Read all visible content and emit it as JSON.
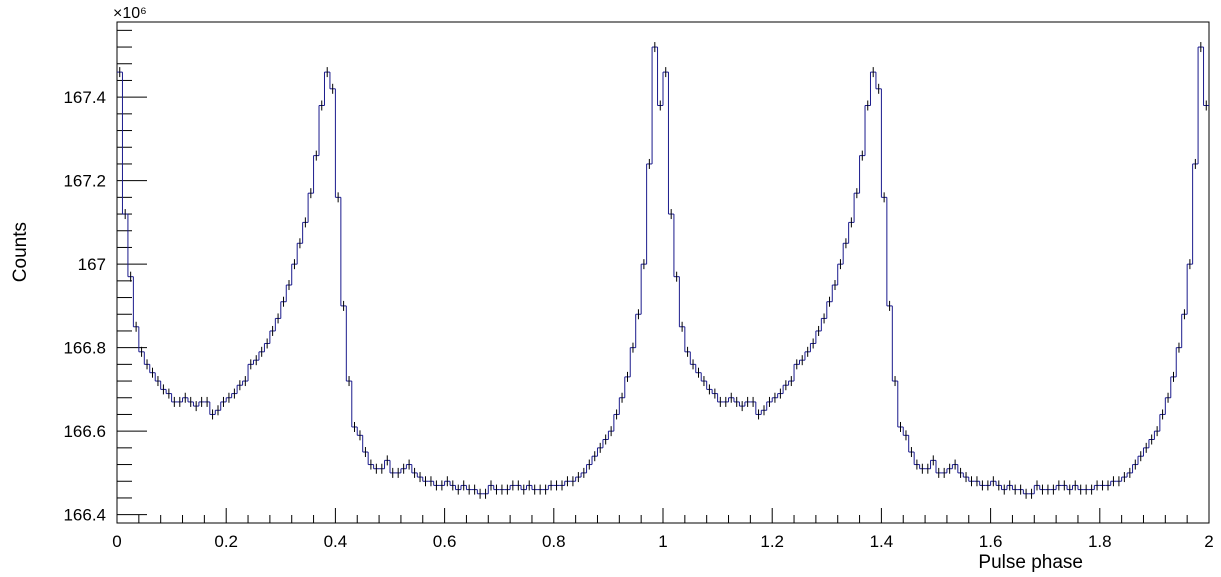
{
  "chart_data": {
    "type": "line",
    "style": "step-histogram-with-error-bars",
    "xlabel": "Pulse phase",
    "ylabel": "Counts",
    "yexponent": "×10⁶",
    "xlim": [
      0,
      2
    ],
    "ylim": [
      166.38,
      167.58
    ],
    "xticks": [
      "0",
      "0.2",
      "0.4",
      "0.6",
      "0.8",
      "1",
      "1.2",
      "1.4",
      "1.6",
      "1.8",
      "2"
    ],
    "yticks": [
      "166.4",
      "166.6",
      "166.8",
      "167",
      "167.2",
      "167.4"
    ],
    "line_color": "#1a1a8c",
    "grid": false,
    "bins": 100,
    "bin_width": 0.01,
    "period_bins": 100,
    "series": [
      {
        "values": [
          167.46,
          167.12,
          166.97,
          166.85,
          166.79,
          166.76,
          166.74,
          166.72,
          166.7,
          166.69,
          166.67,
          166.67,
          166.68,
          166.67,
          166.66,
          166.67,
          166.67,
          166.64,
          166.65,
          166.67,
          166.68,
          166.69,
          166.71,
          166.72,
          166.76,
          166.77,
          166.79,
          166.81,
          166.84,
          166.87,
          166.91,
          166.95,
          167.0,
          167.05,
          167.1,
          167.17,
          167.26,
          167.38,
          167.46,
          167.42,
          167.16,
          166.9,
          166.72,
          166.61,
          166.59,
          166.55,
          166.52,
          166.51,
          166.51,
          166.53,
          166.5,
          166.5,
          166.51,
          166.52,
          166.5,
          166.49,
          166.48,
          166.48,
          166.47,
          166.47,
          166.48,
          166.47,
          166.46,
          166.47,
          166.46,
          166.46,
          166.45,
          166.45,
          166.47,
          166.46,
          166.46,
          166.46,
          166.47,
          166.47,
          166.46,
          166.47,
          166.46,
          166.46,
          166.46,
          166.47,
          166.47,
          166.47,
          166.48,
          166.48,
          166.49,
          166.5,
          166.52,
          166.54,
          166.56,
          166.58,
          166.6,
          166.64,
          166.68,
          166.73,
          166.8,
          166.88,
          167.0,
          167.24,
          167.52,
          167.38
        ]
      }
    ]
  }
}
